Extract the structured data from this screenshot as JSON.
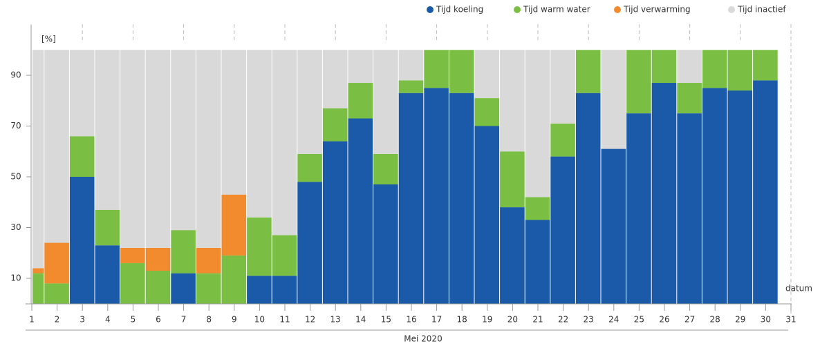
{
  "chart_data": {
    "type": "stacked_bar",
    "y_unit": "[%]",
    "x_end_label": "datum",
    "x_label": "Mei 2020",
    "categories": [
      "1",
      "2",
      "3",
      "4",
      "5",
      "6",
      "7",
      "8",
      "9",
      "10",
      "11",
      "12",
      "13",
      "14",
      "15",
      "16",
      "17",
      "18",
      "19",
      "20",
      "21",
      "22",
      "23",
      "24",
      "25",
      "26",
      "27",
      "28",
      "29",
      "30",
      "31"
    ],
    "series": [
      {
        "name": "Tijd koeling",
        "color": "#1a5aa8",
        "values": [
          0,
          0,
          50,
          23,
          0,
          0,
          12,
          0,
          0,
          11,
          11,
          48,
          64,
          73,
          47,
          83,
          85,
          83,
          70,
          38,
          33,
          58,
          83,
          61,
          75,
          87,
          75,
          85,
          84,
          88,
          null
        ]
      },
      {
        "name": "Tijd warm water",
        "color": "#7abf43",
        "values": [
          12,
          8,
          16,
          14,
          16,
          13,
          17,
          12,
          19,
          23,
          16,
          11,
          13,
          14,
          12,
          5,
          15,
          17,
          11,
          22,
          9,
          13,
          17,
          0,
          25,
          13,
          12,
          15,
          16,
          12,
          null
        ]
      },
      {
        "name": "Tijd verwarming",
        "color": "#f28a2e",
        "values": [
          2,
          16,
          0,
          0,
          6,
          9,
          0,
          10,
          24,
          0,
          0,
          0,
          0,
          0,
          0,
          0,
          0,
          0,
          0,
          0,
          0,
          0,
          0,
          0,
          0,
          0,
          0,
          0,
          0,
          0,
          null
        ]
      },
      {
        "name": "Tijd inactief",
        "color": "#d9d9d9",
        "values": [
          86,
          76,
          34,
          63,
          78,
          78,
          71,
          78,
          57,
          66,
          73,
          41,
          23,
          13,
          41,
          12,
          0,
          0,
          19,
          40,
          58,
          29,
          0,
          39,
          0,
          0,
          13,
          0,
          0,
          0,
          null
        ]
      }
    ],
    "ylim": [
      0,
      110
    ],
    "yticks": [
      10,
      30,
      50,
      70,
      90
    ]
  }
}
